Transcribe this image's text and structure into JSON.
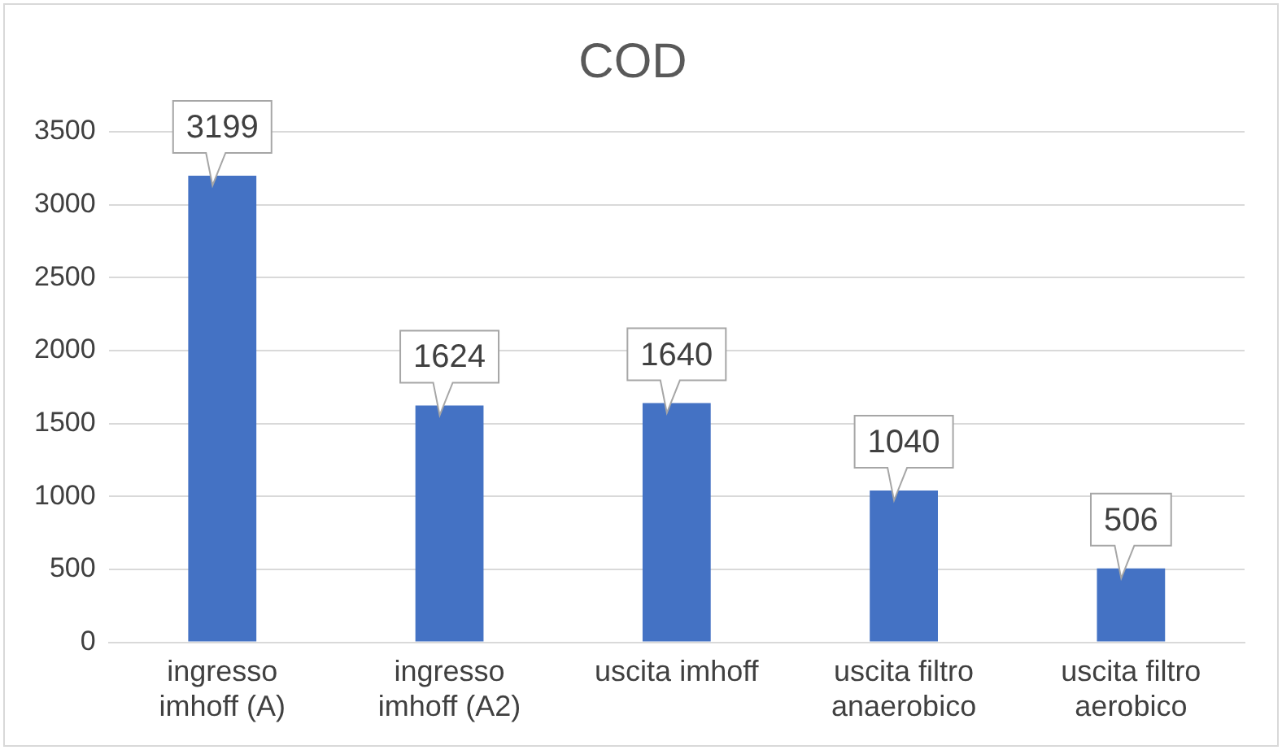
{
  "chart_data": {
    "type": "bar",
    "title": "COD",
    "categories": [
      "ingresso imhoff (A)",
      "ingresso imhoff (A2)",
      "uscita imhoff",
      "uscita filtro anaerobico",
      "uscita filtro aerobico"
    ],
    "values": [
      3199,
      1624,
      1640,
      1040,
      506
    ],
    "color": "#4472c4",
    "ylim": [
      0,
      3500
    ],
    "yticks": [
      0,
      500,
      1000,
      1500,
      2000,
      2500,
      3000,
      3500
    ],
    "grid": "y",
    "data_labels": true
  }
}
